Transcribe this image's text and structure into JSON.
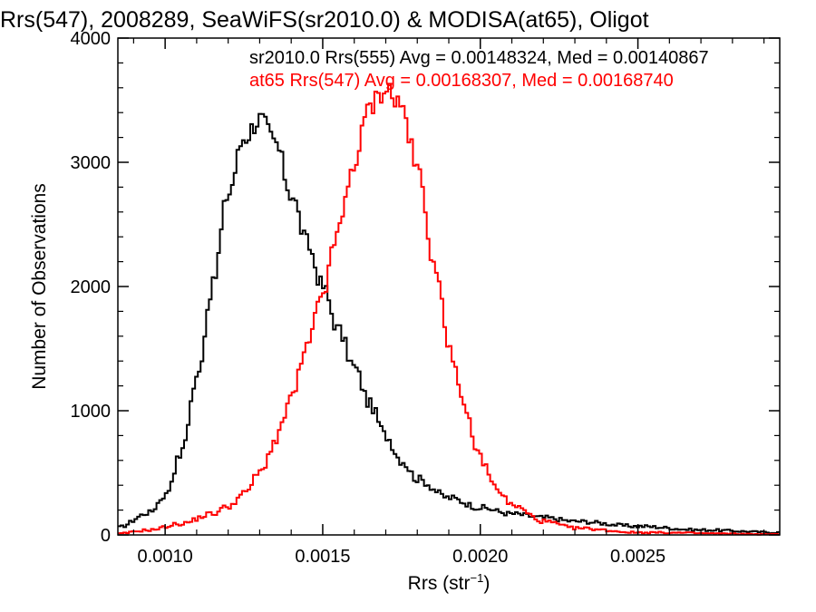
{
  "chart_data": {
    "type": "histogram",
    "title": "Rrs(547), 2008289, SeaWiFS(sr2010.0) & MODISA(at65), Oligot",
    "xlabel_base": "Rrs (str",
    "xlabel_sup": "−1",
    "xlabel_end": ")",
    "ylabel": "Number of Observations",
    "xlim": [
      0.00085,
      0.00295
    ],
    "ylim": [
      0,
      4000
    ],
    "grid": false,
    "x_ticks": [
      {
        "value": 0.001,
        "label": "0.0010"
      },
      {
        "value": 0.0015,
        "label": "0.0015"
      },
      {
        "value": 0.002,
        "label": "0.0020"
      },
      {
        "value": 0.0025,
        "label": "0.0025"
      }
    ],
    "y_ticks": [
      {
        "value": 0,
        "label": "0"
      },
      {
        "value": 1000,
        "label": "1000"
      },
      {
        "value": 2000,
        "label": "2000"
      },
      {
        "value": 3000,
        "label": "3000"
      },
      {
        "value": 4000,
        "label": "4000"
      }
    ],
    "series": [
      {
        "name": "sr2010.0",
        "color": "#000000",
        "legend": "sr2010.0 Rrs(555) Avg = 0.00148324, Med = 0.00140867",
        "profile": [
          {
            "x": 0.00085,
            "y": 60
          },
          {
            "x": 0.00095,
            "y": 180
          },
          {
            "x": 0.001,
            "y": 320
          },
          {
            "x": 0.00105,
            "y": 650
          },
          {
            "x": 0.0011,
            "y": 1250
          },
          {
            "x": 0.00115,
            "y": 2000
          },
          {
            "x": 0.0012,
            "y": 2750
          },
          {
            "x": 0.00125,
            "y": 3200
          },
          {
            "x": 0.0013,
            "y": 3350
          },
          {
            "x": 0.00135,
            "y": 3150
          },
          {
            "x": 0.0014,
            "y": 2750
          },
          {
            "x": 0.00145,
            "y": 2350
          },
          {
            "x": 0.0015,
            "y": 2000
          },
          {
            "x": 0.00155,
            "y": 1650
          },
          {
            "x": 0.0016,
            "y": 1350
          },
          {
            "x": 0.00165,
            "y": 1050
          },
          {
            "x": 0.0017,
            "y": 800
          },
          {
            "x": 0.00175,
            "y": 600
          },
          {
            "x": 0.0018,
            "y": 450
          },
          {
            "x": 0.0019,
            "y": 300
          },
          {
            "x": 0.002,
            "y": 220
          },
          {
            "x": 0.0021,
            "y": 170
          },
          {
            "x": 0.0022,
            "y": 140
          },
          {
            "x": 0.0023,
            "y": 110
          },
          {
            "x": 0.0025,
            "y": 70
          },
          {
            "x": 0.0027,
            "y": 40
          },
          {
            "x": 0.00295,
            "y": 20
          }
        ]
      },
      {
        "name": "at65",
        "color": "#ff0000",
        "legend": "at65 Rrs(547) Avg = 0.00168307, Med = 0.00168740",
        "profile": [
          {
            "x": 0.00085,
            "y": 10
          },
          {
            "x": 0.00095,
            "y": 40
          },
          {
            "x": 0.00105,
            "y": 90
          },
          {
            "x": 0.00115,
            "y": 170
          },
          {
            "x": 0.0012,
            "y": 230
          },
          {
            "x": 0.00125,
            "y": 330
          },
          {
            "x": 0.0013,
            "y": 500
          },
          {
            "x": 0.00135,
            "y": 750
          },
          {
            "x": 0.0014,
            "y": 1100
          },
          {
            "x": 0.00145,
            "y": 1500
          },
          {
            "x": 0.0015,
            "y": 1950
          },
          {
            "x": 0.00155,
            "y": 2450
          },
          {
            "x": 0.0016,
            "y": 3000
          },
          {
            "x": 0.00165,
            "y": 3450
          },
          {
            "x": 0.0017,
            "y": 3600
          },
          {
            "x": 0.00175,
            "y": 3450
          },
          {
            "x": 0.0018,
            "y": 2950
          },
          {
            "x": 0.00185,
            "y": 2250
          },
          {
            "x": 0.0019,
            "y": 1550
          },
          {
            "x": 0.00195,
            "y": 1000
          },
          {
            "x": 0.002,
            "y": 620
          },
          {
            "x": 0.00205,
            "y": 380
          },
          {
            "x": 0.0021,
            "y": 240
          },
          {
            "x": 0.0022,
            "y": 110
          },
          {
            "x": 0.0023,
            "y": 55
          },
          {
            "x": 0.0025,
            "y": 20
          },
          {
            "x": 0.00295,
            "y": 5
          }
        ]
      }
    ]
  }
}
